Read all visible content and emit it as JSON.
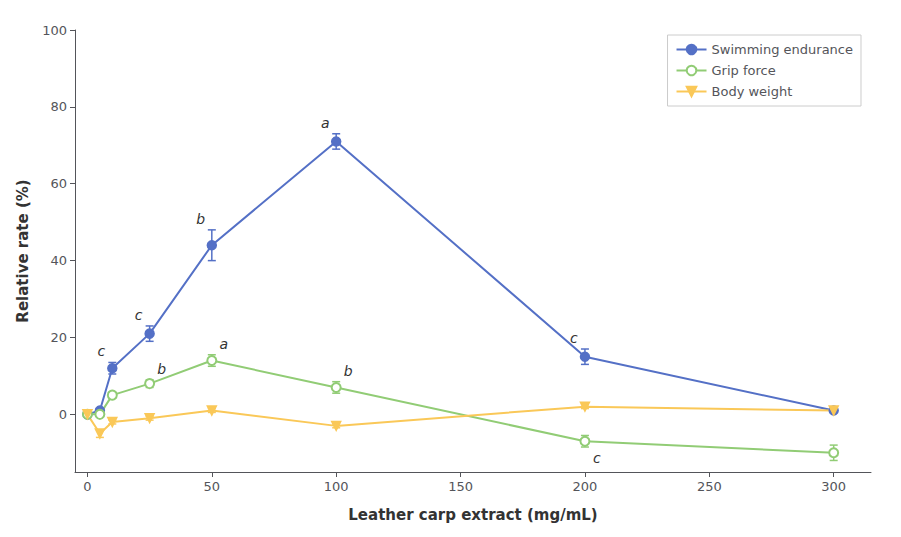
{
  "chart_data": {
    "type": "line",
    "xlabel": "Leather carp extract (mg/mL)",
    "ylabel": "Relative rate (%)",
    "x": [
      0,
      5,
      10,
      25,
      50,
      100,
      200,
      300
    ],
    "series": [
      {
        "name": "Swimming endurance",
        "marker": "circle",
        "line_style": "solid",
        "values": [
          0,
          1,
          12,
          21,
          44,
          71,
          15,
          1
        ],
        "errors": [
          0,
          0.5,
          1.5,
          2,
          4,
          2,
          2,
          0.5
        ],
        "annotations": [
          {
            "x": 10,
            "text": "c"
          },
          {
            "x": 25,
            "text": "c"
          },
          {
            "x": 50,
            "text": "b"
          },
          {
            "x": 100,
            "text": "a"
          },
          {
            "x": 200,
            "text": "c"
          }
        ]
      },
      {
        "name": "Grip force",
        "marker": "open_circle",
        "line_style": "solid",
        "values": [
          0,
          0,
          5,
          8,
          14,
          7,
          -7,
          -10
        ],
        "errors": [
          0,
          0.5,
          0.8,
          1,
          1.5,
          1.5,
          1.5,
          2
        ],
        "annotations": [
          {
            "x": 25,
            "text": "b"
          },
          {
            "x": 50,
            "text": "a"
          },
          {
            "x": 100,
            "text": "b"
          },
          {
            "x": 200,
            "text": "c"
          }
        ]
      },
      {
        "name": "Body weight",
        "marker": "triangle_down",
        "line_style": "solid",
        "values": [
          0,
          -5,
          -2,
          -1,
          1,
          -3,
          2,
          1
        ],
        "errors": [
          0,
          1,
          0.5,
          0.5,
          0.5,
          0.5,
          0.5,
          0.5
        ]
      }
    ],
    "xlim": [
      -5,
      315
    ],
    "xticks": [
      0,
      50,
      100,
      150,
      200,
      250,
      300
    ],
    "ylim": [
      -15,
      100
    ],
    "yticks": [
      0,
      20,
      40,
      60,
      80,
      100
    ],
    "grid": false,
    "legend": "upper right"
  }
}
